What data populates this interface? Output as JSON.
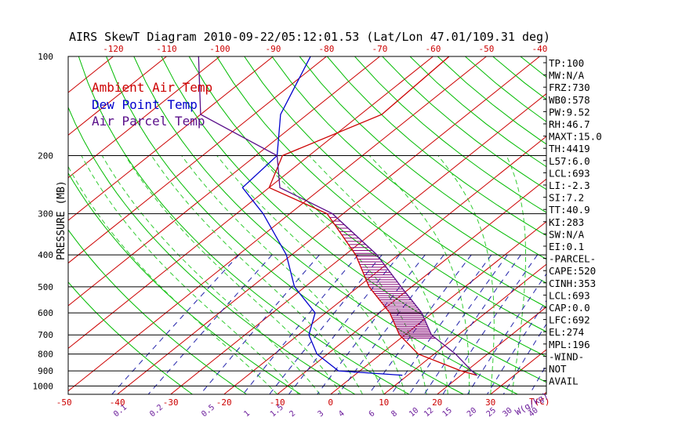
{
  "chart_data": {
    "type": "line",
    "title": "AIRS SkewT Diagram 2010-09-22/05:12:01.53 (Lat/Lon 47.01/109.31 deg)",
    "ylabel": "PRESSURE (MB)",
    "xlabel": "T(C)",
    "mixing_ratio_unit": "W(g/kg)",
    "pressure_ticks": [
      100,
      200,
      300,
      400,
      500,
      600,
      700,
      800,
      900,
      1000
    ],
    "bottom_temp_ticks": [
      -50,
      -40,
      -30,
      -20,
      -10,
      0,
      10,
      20,
      30
    ],
    "top_temp_ticks": [
      -120,
      -110,
      -100,
      -90,
      -80,
      -70,
      -60,
      -50,
      -40
    ],
    "mixing_ratio_labels": [
      "0.1",
      "0.2",
      "0.5",
      "1",
      "1.5",
      "2",
      "3",
      "4",
      "6",
      "8",
      "10",
      "12",
      "15",
      "20",
      "25",
      "30",
      "40"
    ],
    "mixing_ratio_values": [
      0.1,
      0.2,
      0.5,
      1,
      1.5,
      2,
      3,
      4,
      6,
      8,
      10,
      12,
      15,
      20,
      25,
      30,
      40
    ],
    "legend": [
      {
        "name": "Ambient Air Temp",
        "color": "#cc0000"
      },
      {
        "name": "Dew Point Temp",
        "color": "#0000cc"
      },
      {
        "name": "Air Parcel Temp",
        "color": "#5a0f8a"
      }
    ],
    "series": [
      {
        "name": "Ambient Air Temp",
        "points": [
          [
            100,
            -57
          ],
          [
            150,
            -56
          ],
          [
            200,
            -65
          ],
          [
            250,
            -60
          ],
          [
            300,
            -43
          ],
          [
            400,
            -28
          ],
          [
            500,
            -18
          ],
          [
            600,
            -8
          ],
          [
            700,
            -1
          ],
          [
            800,
            7
          ],
          [
            900,
            19
          ],
          [
            928,
            23
          ]
        ]
      },
      {
        "name": "Dew Point Temp",
        "points": [
          [
            100,
            -83
          ],
          [
            150,
            -75
          ],
          [
            200,
            -66
          ],
          [
            250,
            -65
          ],
          [
            300,
            -55
          ],
          [
            400,
            -41
          ],
          [
            500,
            -32
          ],
          [
            600,
            -22
          ],
          [
            700,
            -18
          ],
          [
            800,
            -12
          ],
          [
            900,
            -4
          ],
          [
            928,
            9
          ]
        ]
      },
      {
        "name": "Air Parcel Temp",
        "points": [
          [
            100,
            -104
          ],
          [
            150,
            -90
          ],
          [
            200,
            -66
          ],
          [
            250,
            -58
          ],
          [
            300,
            -42
          ],
          [
            400,
            -24
          ],
          [
            500,
            -12
          ],
          [
            600,
            -2
          ],
          [
            700,
            5
          ],
          [
            800,
            14
          ],
          [
            900,
            21
          ],
          [
            928,
            23
          ]
        ]
      }
    ],
    "indices": [
      "TP:100",
      "MW:N/A",
      "FRZ:730",
      "WB0:578",
      "PW:9.52",
      "RH:46.7",
      "MAXT:15.0",
      "TH:4419",
      "L57:6.0",
      "LCL:693",
      "LI:-2.3",
      "SI:7.2",
      "TT:40.9",
      "KI:283",
      "SW:N/A",
      "EI:0.1",
      "-PARCEL-",
      "CAPE:520",
      "CINH:353",
      "LCL:693",
      "CAP:0.0",
      "LFC:692",
      "EL:274",
      "MPL:196",
      "-WIND-",
      "NOT",
      "AVAIL"
    ]
  },
  "colors": {
    "isotherm": "#cc0000",
    "dry_adiabat": "#00bb00",
    "moist_adiabat": "#33cc33",
    "mixing_ratio": "#2222aa",
    "axis_labels_temp": "#cc0000",
    "axis_labels_mixing": "#6a1a9a",
    "pressure_lines": "#000000",
    "cape_hatch": "#8a0a7a"
  }
}
